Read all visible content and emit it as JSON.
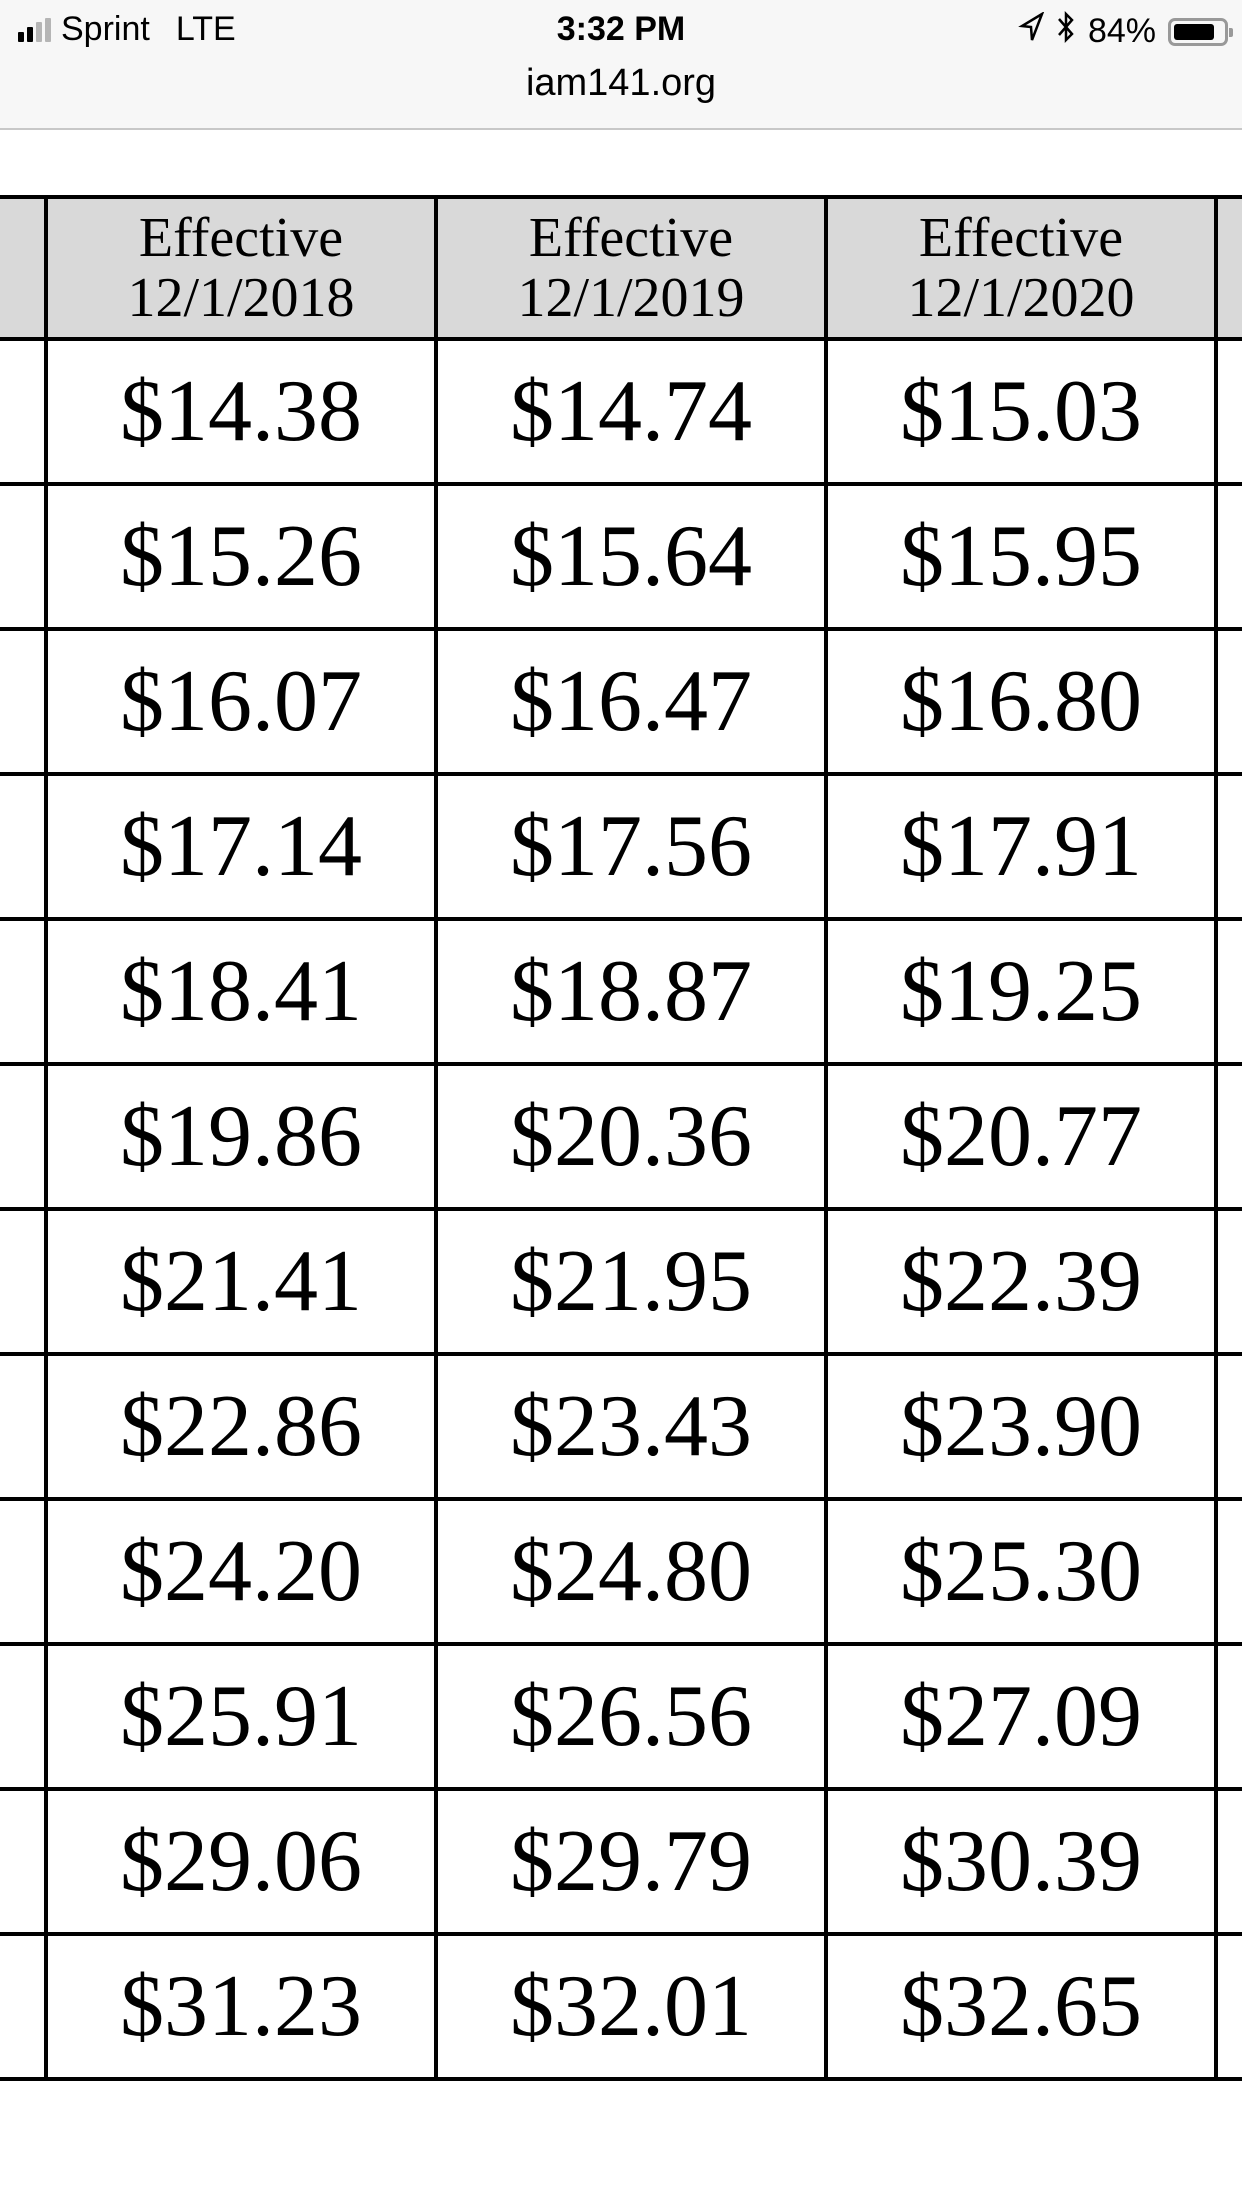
{
  "status_bar": {
    "carrier": "Sprint",
    "network": "LTE",
    "signal_bars": 2,
    "time": "3:32 PM",
    "url": "iam141.org",
    "battery": "84%",
    "battery_level": 0.84,
    "icons": [
      "location-arrow-icon",
      "bluetooth-icon",
      "battery-icon"
    ]
  },
  "table": {
    "headers": [
      {
        "line1": "Effective",
        "line2": "12/1/2018"
      },
      {
        "line1": "Effective",
        "line2": "12/1/2019"
      },
      {
        "line1": "Effective",
        "line2": "12/1/2020"
      }
    ],
    "rows": [
      [
        "$14.38",
        "$14.74",
        "$15.03"
      ],
      [
        "$15.26",
        "$15.64",
        "$15.95"
      ],
      [
        "$16.07",
        "$16.47",
        "$16.80"
      ],
      [
        "$17.14",
        "$17.56",
        "$17.91"
      ],
      [
        "$18.41",
        "$18.87",
        "$19.25"
      ],
      [
        "$19.86",
        "$20.36",
        "$20.77"
      ],
      [
        "$21.41",
        "$21.95",
        "$22.39"
      ],
      [
        "$22.86",
        "$23.43",
        "$23.90"
      ],
      [
        "$24.20",
        "$24.80",
        "$25.30"
      ],
      [
        "$25.91",
        "$26.56",
        "$27.09"
      ],
      [
        "$29.06",
        "$29.79",
        "$30.39"
      ],
      [
        "$31.23",
        "$32.01",
        "$32.65"
      ]
    ]
  }
}
